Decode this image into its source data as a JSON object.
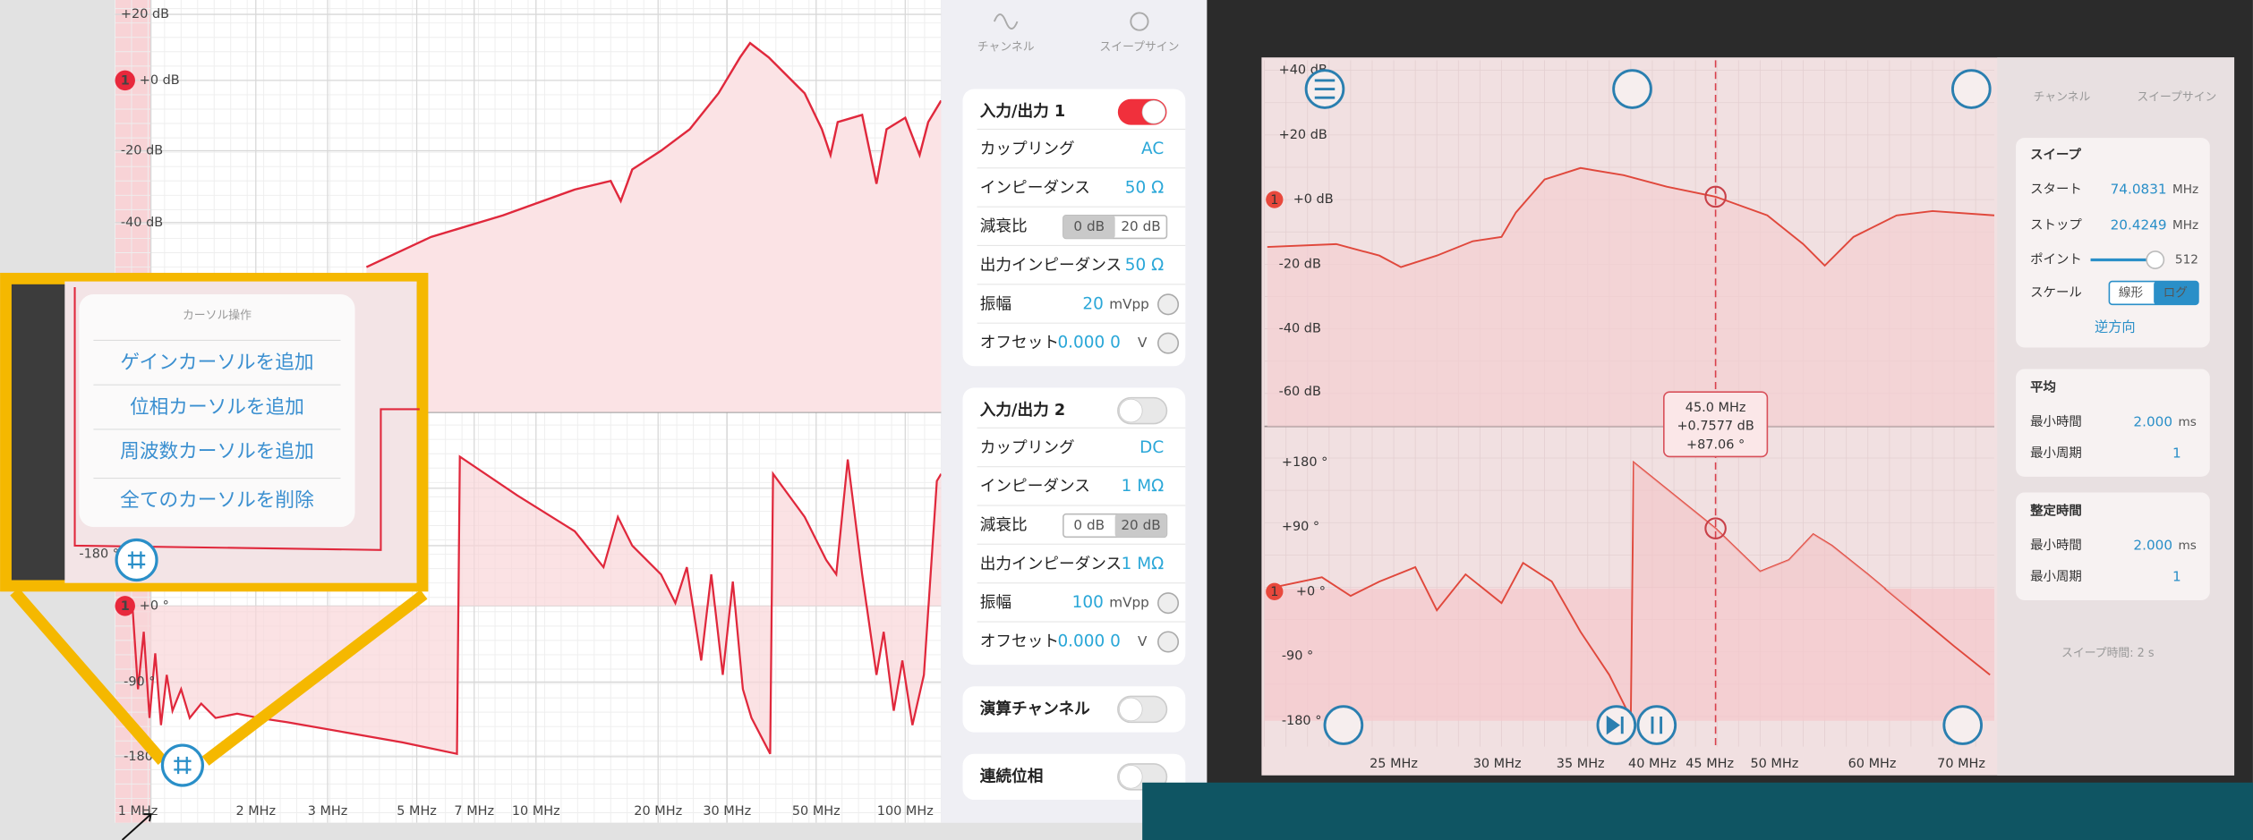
{
  "left_plot": {
    "gain_labels": [
      "+20 dB",
      "+0 dB",
      "-20 dB",
      "-40 dB"
    ],
    "phase_labels": [
      "+0 °",
      "-90 °",
      "-180 °"
    ],
    "x_labels": [
      "1 MHz",
      "2 MHz",
      "3 MHz",
      "5 MHz",
      "7 MHz",
      "10 MHz",
      "20 MHz",
      "30 MHz",
      "50 MHz",
      "100 MHz"
    ],
    "markers": [
      "1",
      "1"
    ]
  },
  "popup": {
    "title": "カーソル操作",
    "items": [
      "ゲインカーソルを追加",
      "位相カーソルを追加",
      "周波数カーソルを追加",
      "全てのカーソルを削除"
    ],
    "axis_label": "-180 °"
  },
  "channel_panel": {
    "tabs": [
      "チャンネル",
      "スイープサイン"
    ],
    "io1": {
      "title": "入力/出力 1",
      "coupling": {
        "label": "カップリング",
        "value": "AC"
      },
      "impedance": {
        "label": "インピーダンス",
        "value": "50 Ω"
      },
      "attenuation": {
        "label": "減衰比",
        "options": [
          "0 dB",
          "20 dB"
        ]
      },
      "output_impedance": {
        "label": "出力インピーダンス",
        "value": "50 Ω"
      },
      "amplitude": {
        "label": "振幅",
        "value": "20",
        "unit": "mVpp"
      },
      "offset": {
        "label": "オフセット",
        "value": "0.000 0",
        "unit": "V"
      }
    },
    "io2": {
      "title": "入力/出力 2",
      "coupling": {
        "label": "カップリング",
        "value": "DC"
      },
      "impedance": {
        "label": "インピーダンス",
        "value": "1 MΩ"
      },
      "attenuation": {
        "label": "減衰比",
        "options": [
          "0 dB",
          "20 dB"
        ]
      },
      "output_impedance": {
        "label": "出力インピーダンス",
        "value": "1 MΩ"
      },
      "amplitude": {
        "label": "振幅",
        "value": "100",
        "unit": "mVpp"
      },
      "offset": {
        "label": "オフセット",
        "value": "0.000 0",
        "unit": "V"
      }
    },
    "math": "演算チャンネル",
    "continuous_phase": "連続位相"
  },
  "photo": {
    "gain_labels": [
      "+40 dB",
      "+20 dB",
      "+0 dB",
      "-20 dB",
      "-40 dB",
      "-60 dB"
    ],
    "phase_labels": [
      "+180 °",
      "+90 °",
      "+0 °",
      "-90 °",
      "-180 °"
    ],
    "x_labels": [
      "25 MHz",
      "30 MHz",
      "35 MHz",
      "40 MHz",
      "45 MHz",
      "50 MHz",
      "60 MHz",
      "70 MHz"
    ],
    "markers": [
      "1",
      "1"
    ],
    "cursor": [
      "45.0 MHz",
      "+0.7577 dB",
      "+87.06 °"
    ],
    "panel": {
      "tabs": [
        "チャンネル",
        "スイープサイン"
      ],
      "sweep": {
        "title": "スイープ",
        "start": {
          "label": "スタート",
          "value": "74.0831",
          "unit": "MHz"
        },
        "stop": {
          "label": "ストップ",
          "value": "20.4249",
          "unit": "MHz"
        },
        "points": {
          "label": "ポイント",
          "value": "512"
        },
        "scale": {
          "label": "スケール",
          "options": [
            "線形",
            "ログ"
          ]
        },
        "reverse": "逆方向"
      },
      "average": {
        "title": "平均",
        "time": {
          "label": "最小時間",
          "value": "2.000",
          "unit": "ms"
        },
        "period": {
          "label": "最小周期",
          "value": "1"
        }
      },
      "settling": {
        "title": "整定時間",
        "time": {
          "label": "最小時間",
          "value": "2.000",
          "unit": "ms"
        },
        "period": {
          "label": "最小周期",
          "value": "1"
        }
      },
      "sweep_time": "スイープ時間: 2 s"
    }
  }
}
